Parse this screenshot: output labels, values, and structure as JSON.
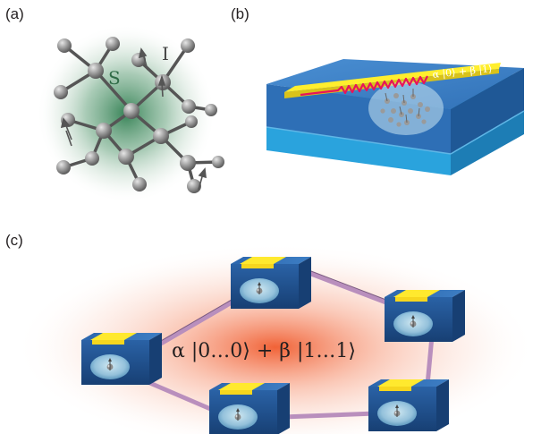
{
  "panels": {
    "a": {
      "label": "(a)",
      "electron_spin_symbol": "S",
      "nuclear_spin_symbol": "I"
    },
    "b": {
      "label": "(b)",
      "qubit_state": "α |0⟩ + β |1⟩"
    },
    "c": {
      "label": "(c)",
      "entangled_state": "α |0…0⟩ + β |1…1⟩"
    }
  },
  "colors": {
    "atom": "#9a9a9a",
    "bond": "#555555",
    "spin_glow": "#3f8a5c",
    "chip_top": "#3d7fc6",
    "chip_bottom_layer": "#39a8de",
    "stripline": "#ffee2e",
    "microwave": "#e8145a",
    "network_glow": "#f06a3c",
    "link": "#b98fbd",
    "device_face": "#1c4f8f"
  },
  "icons": [
    "lattice-atom",
    "spin-arrow",
    "microwave-wave",
    "qubit-device"
  ]
}
